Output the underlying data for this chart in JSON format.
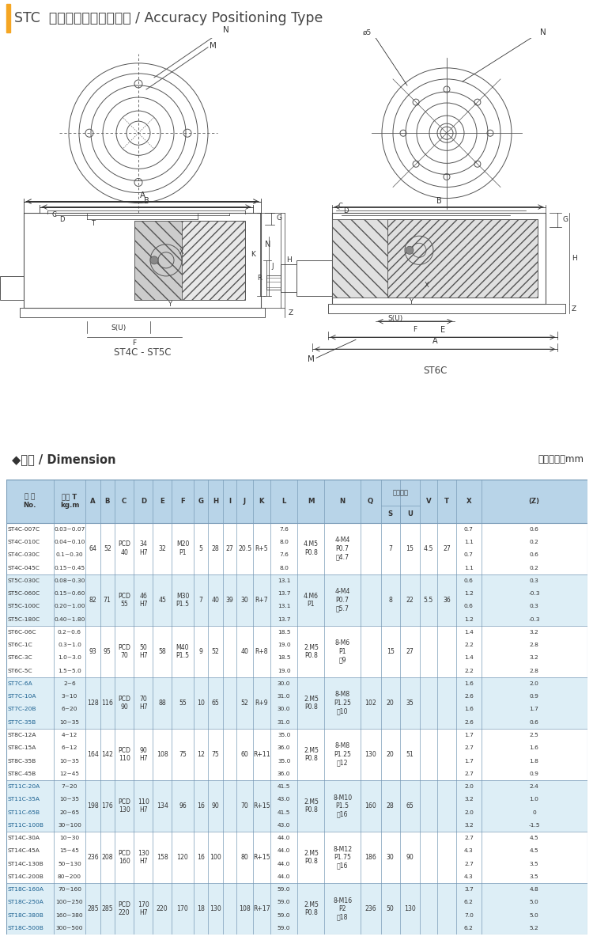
{
  "title": "STC  精密定位型扝力限制器 / Accuracy Positioning Type",
  "subtitle_left": "ST4C - ST5C",
  "subtitle_right": "ST6C",
  "unit_text": "尺寸單位：mm",
  "section_title": "◆尺寸 / Dimension",
  "rows": [
    {
      "models": [
        "ST4C-007C",
        "ST4C-010C",
        "ST4C-030C",
        "ST4C-045C"
      ],
      "torques": [
        "0.03~0.07",
        "0.04~0.10",
        "0.1~0.30",
        "0.15~0.45"
      ],
      "A": "64",
      "B": "52",
      "C": "PCD\n40",
      "D": "34\nH7",
      "E": "32",
      "F": "M20\nP1",
      "G": "5",
      "H": "28",
      "I": "27",
      "J": "20.5",
      "K": "R+5",
      "L": [
        "7.6",
        "8.0",
        "7.6",
        "8.0"
      ],
      "M": "4.M5\nP0.8",
      "N": "4-M4\nP0.7\n深4.7",
      "Q": "",
      "S": "7",
      "U": "15",
      "V": "4.5",
      "T_val": "27",
      "X": [
        "0.7",
        "1.1",
        "0.7",
        "1.1"
      ],
      "Z": [
        "0.6",
        "0.2",
        "0.6",
        "0.2"
      ],
      "highlight": false
    },
    {
      "models": [
        "ST5C-030C",
        "ST5C-060C",
        "ST5C-100C",
        "ST5C-180C"
      ],
      "torques": [
        "0.08~0.30",
        "0.15~0.60",
        "0.20~1.00",
        "0.40~1.80"
      ],
      "A": "82",
      "B": "71",
      "C": "PCD\n55",
      "D": "46\nH7",
      "E": "45",
      "F": "M30\nP1.5",
      "G": "7",
      "H": "40",
      "I": "39",
      "J": "30",
      "K": "R+7",
      "L": [
        "13.1",
        "13.7",
        "13.1",
        "13.7"
      ],
      "M": "4.M6\nP1",
      "N": "4-M4\nP0.7\n深5.7",
      "Q": "",
      "S": "8",
      "U": "22",
      "V": "5.5",
      "T_val": "36",
      "X": [
        "0.6",
        "1.2",
        "0.6",
        "1.2"
      ],
      "Z": [
        "0.3",
        "-0.3",
        "0.3",
        "-0.3"
      ],
      "highlight": false
    },
    {
      "models": [
        "ST6C-06C",
        "ST6C-1C",
        "ST6C-3C",
        "ST6C-5C"
      ],
      "torques": [
        "0.2~0.6",
        "0.3~1.0",
        "1.0~3.0",
        "1.5~5.0"
      ],
      "A": "93",
      "B": "95",
      "C": "PCD\n70",
      "D": "50\nH7",
      "E": "58",
      "F": "M40\nP1.5",
      "G": "9",
      "H": "52",
      "I": "",
      "J": "40",
      "K": "R+8",
      "L": [
        "18.5",
        "19.0",
        "18.5",
        "19.0"
      ],
      "M": "2.M5\nP0.8",
      "N": "8-M6\nP1\n深9",
      "Q": "",
      "S": "15",
      "U": "27",
      "V": "",
      "T_val": "",
      "X": [
        "1.4",
        "2.2",
        "1.4",
        "2.2"
      ],
      "Z": [
        "3.2",
        "2.8",
        "3.2",
        "2.8"
      ],
      "highlight": false
    },
    {
      "models": [
        "ST7C-6A",
        "ST7C-10A",
        "ST7C-20B",
        "ST7C-35B"
      ],
      "torques": [
        "2~6",
        "3~10",
        "6~20",
        "10~35"
      ],
      "A": "128",
      "B": "116",
      "C": "PCD\n90",
      "D": "70\nH7",
      "E": "88",
      "F": "55",
      "G": "10",
      "H": "65",
      "I": "",
      "J": "52",
      "K": "R+9",
      "L": [
        "30.0",
        "31.0",
        "30.0",
        "31.0"
      ],
      "M": "2.M5\nP0.8",
      "N": "8-M8\nP1.25\n深10",
      "Q": "102",
      "S": "20",
      "U": "35",
      "V": "",
      "T_val": "",
      "X": [
        "1.6",
        "2.6",
        "1.6",
        "2.6"
      ],
      "Z": [
        "2.0",
        "0.9",
        "1.7",
        "0.6"
      ],
      "highlight": true
    },
    {
      "models": [
        "ST8C-12A",
        "ST8C-15A",
        "ST8C-35B",
        "ST8C-45B"
      ],
      "torques": [
        "4~12",
        "6~12",
        "10~35",
        "12~45"
      ],
      "A": "164",
      "B": "142",
      "C": "PCD\n110",
      "D": "90\nH7",
      "E": "108",
      "F": "75",
      "G": "12",
      "H": "75",
      "I": "",
      "J": "60",
      "K": "R+11",
      "L": [
        "35.0",
        "36.0",
        "35.0",
        "36.0"
      ],
      "M": "2.M5\nP0.8",
      "N": "8-M8\nP1.25\n深12",
      "Q": "130",
      "S": "20",
      "U": "51",
      "V": "",
      "T_val": "",
      "X": [
        "1.7",
        "2.7",
        "1.7",
        "2.7"
      ],
      "Z": [
        "2.5",
        "1.6",
        "1.8",
        "0.9"
      ],
      "highlight": false
    },
    {
      "models": [
        "ST11C-20A",
        "ST11C-35A",
        "ST11C-65B",
        "ST11C-100B"
      ],
      "torques": [
        "7~20",
        "10~35",
        "20~65",
        "30~100"
      ],
      "A": "198",
      "B": "176",
      "C": "PCD\n130",
      "D": "110\nH7",
      "E": "134",
      "F": "96",
      "G": "16",
      "H": "90",
      "I": "",
      "J": "70",
      "K": "R+15",
      "L": [
        "41.5",
        "43.0",
        "41.5",
        "43.0"
      ],
      "M": "2.M5\nP0.8",
      "N": "8-M10\nP1.5\n深16",
      "Q": "160",
      "S": "28",
      "U": "65",
      "V": "",
      "T_val": "",
      "X": [
        "2.0",
        "3.2",
        "2.0",
        "3.2"
      ],
      "Z": [
        "2.4",
        "1.0",
        "0",
        "-1.5"
      ],
      "highlight": true
    },
    {
      "models": [
        "ST14C-30A",
        "ST14C-45A",
        "ST14C-130B",
        "ST14C-200B"
      ],
      "torques": [
        "10~30",
        "15~45",
        "50~130",
        "80~200"
      ],
      "A": "236",
      "B": "208",
      "C": "PCD\n160",
      "D": "130\nH7",
      "E": "158",
      "F": "120",
      "G": "16",
      "H": "100",
      "I": "",
      "J": "80",
      "K": "R+15",
      "L": [
        "44.0",
        "44.0",
        "44.0",
        "44.0"
      ],
      "M": "2.M5\nP0.8",
      "N": "8-M12\nP1.75\n深16",
      "Q": "186",
      "S": "30",
      "U": "90",
      "V": "",
      "T_val": "",
      "X": [
        "2.7",
        "4.3",
        "2.7",
        "4.3"
      ],
      "Z": [
        "4.5",
        "4.5",
        "3.5",
        "3.5"
      ],
      "highlight": false
    },
    {
      "models": [
        "ST18C-160A",
        "ST18C-250A",
        "ST18C-380B",
        "ST18C-500B"
      ],
      "torques": [
        "70~160",
        "100~250",
        "160~380",
        "300~500"
      ],
      "A": "285",
      "B": "285",
      "C": "PCD\n220",
      "D": "170\nH7",
      "E": "220",
      "F": "170",
      "G": "18",
      "H": "130",
      "I": "",
      "J": "108",
      "K": "R+17",
      "L": [
        "59.0",
        "59.0",
        "59.0",
        "59.0"
      ],
      "M": "2.M5\nP0.8",
      "N": "8-M16\nP2\n深18",
      "Q": "236",
      "S": "50",
      "U": "130",
      "V": "",
      "T_val": "",
      "X": [
        "3.7",
        "6.2",
        "7.0",
        "6.2"
      ],
      "Z": [
        "4.8",
        "5.0",
        "5.0",
        "5.2"
      ],
      "highlight": true
    }
  ],
  "row_colors": [
    "#ffffff",
    "#ddeef6",
    "#ffffff",
    "#ddeef6",
    "#ffffff",
    "#ddeef6",
    "#ffffff",
    "#ddeef6"
  ],
  "header_color": "#b8d4e8",
  "orange_bar_color": "#f5a623",
  "border_color": "#7a9cb8",
  "text_color": "#333333",
  "highlight_text_color": "#1a6090",
  "line_color": "#555555",
  "dim_line_color": "#333333"
}
